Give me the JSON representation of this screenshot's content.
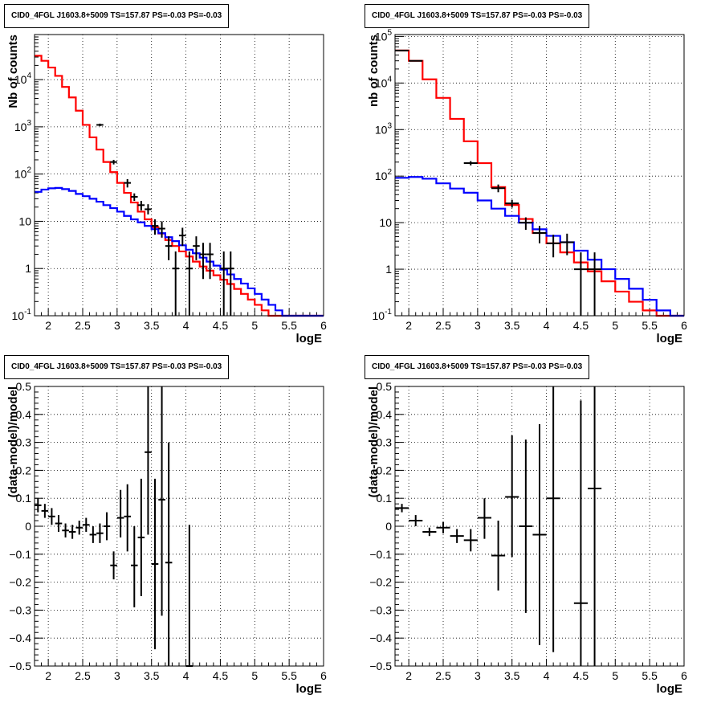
{
  "panels": [
    {
      "id": "counts-all",
      "title": "CID0_4FGL J1603.8+5009 TS=157.87 PS=-0.03 PS=-0.03",
      "chart_data": {
        "type": "line",
        "xlabel": "logE",
        "ylabel": "Nb of counts",
        "xlim": [
          1.8,
          6.0
        ],
        "ylim": [
          0.1,
          90000
        ],
        "yscale": "log",
        "grid": true,
        "x_ticks": [
          "2",
          "2.5",
          "3",
          "3.5",
          "4",
          "4.5",
          "5",
          "5.5",
          "6"
        ],
        "y_ticks": [
          "10^-1",
          "1",
          "10",
          "10^2",
          "10^3",
          "10^4"
        ],
        "bin_edges": [
          1.8,
          1.9,
          2.0,
          2.1,
          2.2,
          2.3,
          2.4,
          2.5,
          2.6,
          2.7,
          2.8,
          2.9,
          3.0,
          3.1,
          3.2,
          3.3,
          3.4,
          3.5,
          3.6,
          3.7,
          3.8,
          3.9,
          4.0,
          4.1,
          4.2,
          4.3,
          4.4,
          4.5,
          4.6,
          4.7,
          4.8,
          4.9,
          5.0,
          5.1,
          5.2,
          5.3,
          5.4,
          5.5,
          5.6,
          5.7,
          5.8,
          5.9,
          6.0
        ],
        "series": [
          {
            "name": "",
            "color": "#ff0000",
            "values": [
              32000,
              25000,
              18000,
              12000,
              7000,
              4200,
              2200,
              1100,
              600,
              330,
              180,
              110,
              65,
              40,
              25,
              16,
              11,
              7.5,
              5.5,
              4.0,
              3.0,
              2.3,
              1.8,
              1.4,
              1.1,
              0.9,
              0.72,
              0.58,
              0.47,
              0.37,
              0.29,
              0.22,
              0.17,
              0.13,
              0.1,
              0.1,
              0.1,
              0.1,
              0.1,
              0.1,
              0.1,
              0.1
            ]
          },
          {
            "name": "",
            "color": "#0000ff",
            "values": [
              42,
              47,
              50,
              51,
              48,
              44,
              38,
              34,
              30,
              26,
              22,
              19,
              16,
              13,
              11,
              9.5,
              8,
              6.8,
              5.6,
              4.6,
              3.8,
              3.1,
              2.5,
              2.1,
              1.7,
              1.4,
              1.15,
              0.95,
              0.75,
              0.6,
              0.48,
              0.38,
              0.29,
              0.22,
              0.17,
              0.13,
              0.1,
              0.1,
              0.1,
              0.1,
              0.1,
              0.1
            ]
          }
        ],
        "points": [
          {
            "x": 2.75,
            "xerr": 0.05,
            "y": 1100,
            "ylo": 1030,
            "yhi": 1170
          },
          {
            "x": 2.95,
            "xerr": 0.05,
            "y": 180,
            "ylo": 160,
            "yhi": 200
          },
          {
            "x": 3.15,
            "xerr": 0.05,
            "y": 65,
            "ylo": 52,
            "yhi": 78
          },
          {
            "x": 3.25,
            "xerr": 0.05,
            "y": 33,
            "ylo": 27,
            "yhi": 39
          },
          {
            "x": 3.35,
            "xerr": 0.05,
            "y": 22,
            "ylo": 17,
            "yhi": 27
          },
          {
            "x": 3.45,
            "xerr": 0.05,
            "y": 18,
            "ylo": 14,
            "yhi": 23
          },
          {
            "x": 3.55,
            "xerr": 0.05,
            "y": 8,
            "ylo": 5.2,
            "yhi": 11
          },
          {
            "x": 3.65,
            "xerr": 0.05,
            "y": 7,
            "ylo": 4.5,
            "yhi": 10
          },
          {
            "x": 3.75,
            "xerr": 0.05,
            "y": 3,
            "ylo": 1.5,
            "yhi": 4.8
          },
          {
            "x": 3.85,
            "xerr": 0.05,
            "y": 1,
            "ylo": 0.1,
            "yhi": 2.3
          },
          {
            "x": 3.95,
            "xerr": 0.05,
            "y": 5,
            "ylo": 3,
            "yhi": 7.3
          },
          {
            "x": 4.05,
            "xerr": 0.05,
            "y": 1,
            "ylo": 0.1,
            "yhi": 2.3
          },
          {
            "x": 4.15,
            "xerr": 0.05,
            "y": 3,
            "ylo": 1.5,
            "yhi": 4.8
          },
          {
            "x": 4.25,
            "xerr": 0.05,
            "y": 2,
            "ylo": 0.6,
            "yhi": 3.5
          },
          {
            "x": 4.35,
            "xerr": 0.05,
            "y": 2,
            "ylo": 0.6,
            "yhi": 3.5
          },
          {
            "x": 4.55,
            "xerr": 0.05,
            "y": 1,
            "ylo": 0.1,
            "yhi": 2.3
          },
          {
            "x": 4.65,
            "xerr": 0.05,
            "y": 1,
            "ylo": 0.1,
            "yhi": 2.3
          }
        ]
      }
    },
    {
      "id": "counts-rebinned",
      "title": "CID0_4FGL J1603.8+5009 TS=157.87 PS=-0.03 PS=-0.03",
      "chart_data": {
        "type": "line",
        "xlabel": "logE",
        "ylabel": "nb of counts",
        "xlim": [
          1.8,
          6.0
        ],
        "ylim": [
          0.1,
          110000
        ],
        "yscale": "log",
        "grid": true,
        "x_ticks": [
          "2",
          "2.5",
          "3",
          "3.5",
          "4",
          "4.5",
          "5",
          "5.5",
          "6"
        ],
        "y_ticks": [
          "10^-1",
          "1",
          "10",
          "10^2",
          "10^3",
          "10^4",
          "10^5"
        ],
        "bin_edges": [
          1.8,
          2.0,
          2.2,
          2.4,
          2.6,
          2.8,
          3.0,
          3.2,
          3.4,
          3.6,
          3.8,
          4.0,
          4.2,
          4.4,
          4.6,
          4.8,
          5.0,
          5.2,
          5.4,
          5.6,
          5.8,
          6.0
        ],
        "series": [
          {
            "name": "",
            "color": "#ff0000",
            "values": [
              50000,
              30000,
              12000,
              4800,
              1700,
              560,
              190,
              58,
              24,
              12,
              6,
              3.6,
              2.3,
              1.4,
              0.9,
              0.55,
              0.33,
              0.2,
              0.13,
              0.1,
              0.1
            ]
          },
          {
            "name": "",
            "color": "#0000ff",
            "values": [
              92,
              96,
              88,
              70,
              54,
              44,
              30,
              20,
              14,
              10,
              7.2,
              5.2,
              3.8,
              2.5,
              1.6,
              1.0,
              0.62,
              0.38,
              0.22,
              0.13,
              0.1
            ]
          }
        ],
        "points": [
          {
            "x": 1.9,
            "xerr": 0.1,
            "y": 50000,
            "ylo": 49000,
            "yhi": 51000
          },
          {
            "x": 2.1,
            "xerr": 0.1,
            "y": 30000,
            "ylo": 29500,
            "yhi": 30500
          },
          {
            "x": 2.9,
            "xerr": 0.1,
            "y": 190,
            "ylo": 170,
            "yhi": 210
          },
          {
            "x": 3.3,
            "xerr": 0.1,
            "y": 55,
            "ylo": 45,
            "yhi": 66
          },
          {
            "x": 3.5,
            "xerr": 0.1,
            "y": 26,
            "ylo": 21,
            "yhi": 31
          },
          {
            "x": 3.7,
            "xerr": 0.1,
            "y": 10,
            "ylo": 7,
            "yhi": 13
          },
          {
            "x": 3.9,
            "xerr": 0.1,
            "y": 6,
            "ylo": 3.6,
            "yhi": 8.5
          },
          {
            "x": 4.1,
            "xerr": 0.1,
            "y": 3.6,
            "ylo": 1.8,
            "yhi": 5.5
          },
          {
            "x": 4.3,
            "xerr": 0.1,
            "y": 3.8,
            "ylo": 2,
            "yhi": 5.8
          },
          {
            "x": 4.5,
            "xerr": 0.1,
            "y": 1,
            "ylo": 0.1,
            "yhi": 2.3
          },
          {
            "x": 4.7,
            "xerr": 0.1,
            "y": 1,
            "ylo": 0.1,
            "yhi": 2.3
          }
        ]
      }
    },
    {
      "id": "residuals-all",
      "title": "CID0_4FGL J1603.8+5009 TS=157.87 PS=-0.03 PS=-0.03",
      "chart_data": {
        "type": "scatter",
        "xlabel": "logE",
        "ylabel": "(data-model)/model",
        "xlim": [
          1.8,
          6.0
        ],
        "ylim": [
          -0.5,
          0.5
        ],
        "yscale": "linear",
        "grid": true,
        "x_ticks": [
          "2",
          "2.5",
          "3",
          "3.5",
          "4",
          "4.5",
          "5",
          "5.5",
          "6"
        ],
        "y_ticks": [
          "−0.5",
          "−0.4",
          "−0.3",
          "−0.2",
          "−0.1",
          "0",
          "0.1",
          "0.2",
          "0.3",
          "0.4",
          "0.5"
        ],
        "points": [
          {
            "x": 1.85,
            "xerr": 0.05,
            "y": 0.075,
            "ylo": 0.05,
            "yhi": 0.1
          },
          {
            "x": 1.95,
            "xerr": 0.05,
            "y": 0.055,
            "ylo": 0.03,
            "yhi": 0.08
          },
          {
            "x": 2.05,
            "xerr": 0.05,
            "y": 0.035,
            "ylo": 0.005,
            "yhi": 0.065
          },
          {
            "x": 2.15,
            "xerr": 0.05,
            "y": 0.01,
            "ylo": -0.02,
            "yhi": 0.04
          },
          {
            "x": 2.25,
            "xerr": 0.05,
            "y": -0.015,
            "ylo": -0.04,
            "yhi": 0.01
          },
          {
            "x": 2.35,
            "xerr": 0.05,
            "y": -0.02,
            "ylo": -0.045,
            "yhi": 0.005
          },
          {
            "x": 2.45,
            "xerr": 0.05,
            "y": -0.005,
            "ylo": -0.03,
            "yhi": 0.02
          },
          {
            "x": 2.55,
            "xerr": 0.05,
            "y": 0.005,
            "ylo": -0.02,
            "yhi": 0.03
          },
          {
            "x": 2.65,
            "xerr": 0.05,
            "y": -0.03,
            "ylo": -0.06,
            "yhi": 0.0
          },
          {
            "x": 2.75,
            "xerr": 0.05,
            "y": -0.025,
            "ylo": -0.06,
            "yhi": 0.01
          },
          {
            "x": 2.85,
            "xerr": 0.05,
            "y": 0.0,
            "ylo": -0.05,
            "yhi": 0.05
          },
          {
            "x": 2.95,
            "xerr": 0.05,
            "y": -0.14,
            "ylo": -0.19,
            "yhi": -0.09
          },
          {
            "x": 3.05,
            "xerr": 0.05,
            "y": 0.03,
            "ylo": -0.04,
            "yhi": 0.13
          },
          {
            "x": 3.15,
            "xerr": 0.05,
            "y": 0.035,
            "ylo": -0.09,
            "yhi": 0.15
          },
          {
            "x": 3.25,
            "xerr": 0.05,
            "y": -0.14,
            "ylo": -0.29,
            "yhi": 0.0
          },
          {
            "x": 3.35,
            "xerr": 0.05,
            "y": -0.04,
            "ylo": -0.25,
            "yhi": 0.17
          },
          {
            "x": 3.45,
            "xerr": 0.05,
            "y": 0.265,
            "ylo": -0.03,
            "yhi": 0.5
          },
          {
            "x": 3.55,
            "xerr": 0.05,
            "y": -0.135,
            "ylo": -0.44,
            "yhi": 0.17
          },
          {
            "x": 3.65,
            "xerr": 0.05,
            "y": 0.095,
            "ylo": -0.32,
            "yhi": 0.5
          },
          {
            "x": 3.75,
            "xerr": 0.05,
            "y": -0.13,
            "ylo": -0.5,
            "yhi": 0.3
          },
          {
            "x": 4.05,
            "xerr": 0.05,
            "y": -0.5,
            "ylo": -0.5,
            "yhi": 0.005
          }
        ]
      }
    },
    {
      "id": "residuals-rebinned",
      "title": "CID0_4FGL J1603.8+5009 TS=157.87 PS=-0.03 PS=-0.03",
      "chart_data": {
        "type": "scatter",
        "xlabel": "logE",
        "ylabel": "(data-model)/model",
        "xlim": [
          1.8,
          6.0
        ],
        "ylim": [
          -0.5,
          0.5
        ],
        "yscale": "linear",
        "grid": true,
        "x_ticks": [
          "2",
          "2.5",
          "3",
          "3.5",
          "4",
          "4.5",
          "5",
          "5.5",
          "6"
        ],
        "y_ticks": [
          "−0.5",
          "−0.4",
          "−0.3",
          "−0.2",
          "−0.1",
          "0",
          "0.1",
          "0.2",
          "0.3",
          "0.4",
          "0.5"
        ],
        "points": [
          {
            "x": 1.9,
            "xerr": 0.1,
            "y": 0.065,
            "ylo": 0.05,
            "yhi": 0.08
          },
          {
            "x": 2.1,
            "xerr": 0.1,
            "y": 0.02,
            "ylo": 0.0,
            "yhi": 0.04
          },
          {
            "x": 2.3,
            "xerr": 0.1,
            "y": -0.02,
            "ylo": -0.035,
            "yhi": -0.005
          },
          {
            "x": 2.5,
            "xerr": 0.1,
            "y": -0.005,
            "ylo": -0.025,
            "yhi": 0.015
          },
          {
            "x": 2.7,
            "xerr": 0.1,
            "y": -0.035,
            "ylo": -0.06,
            "yhi": -0.01
          },
          {
            "x": 2.9,
            "xerr": 0.1,
            "y": -0.05,
            "ylo": -0.09,
            "yhi": -0.01
          },
          {
            "x": 3.1,
            "xerr": 0.1,
            "y": 0.03,
            "ylo": -0.045,
            "yhi": 0.1
          },
          {
            "x": 3.3,
            "xerr": 0.1,
            "y": -0.105,
            "ylo": -0.23,
            "yhi": 0.02
          },
          {
            "x": 3.5,
            "xerr": 0.1,
            "y": 0.105,
            "ylo": -0.11,
            "yhi": 0.325
          },
          {
            "x": 3.7,
            "xerr": 0.1,
            "y": 0.0,
            "ylo": -0.31,
            "yhi": 0.31
          },
          {
            "x": 3.9,
            "xerr": 0.1,
            "y": -0.03,
            "ylo": -0.425,
            "yhi": 0.365
          },
          {
            "x": 4.1,
            "xerr": 0.1,
            "y": 0.1,
            "ylo": -0.45,
            "yhi": 0.5
          },
          {
            "x": 4.5,
            "xerr": 0.1,
            "y": -0.275,
            "ylo": -0.5,
            "yhi": 0.45
          },
          {
            "x": 4.7,
            "xerr": 0.1,
            "y": 0.135,
            "ylo": -0.5,
            "yhi": 0.5
          }
        ]
      }
    }
  ]
}
